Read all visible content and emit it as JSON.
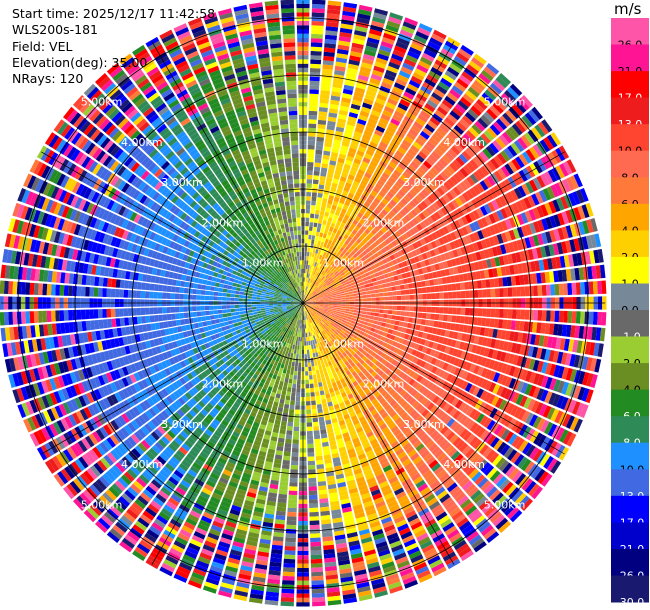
{
  "header": {
    "start_time": "Start time: 2025/12/17 11:42:58",
    "instrument": "WLS200s-181",
    "field": "Field: VEL",
    "elevation": "Elevation(deg): 35.00",
    "nrays": "NRays: 120"
  },
  "colorbar": {
    "unit": "m/s",
    "bins": [
      {
        "label": "26.0",
        "color": "#ff55a8"
      },
      {
        "label": "21.0",
        "color": "#ff1493"
      },
      {
        "label": "17.0",
        "color": "#ff0000"
      },
      {
        "label": "13.0",
        "color": "#ee1c1c"
      },
      {
        "label": "10.0",
        "color": "#ff4530"
      },
      {
        "label": "8.0",
        "color": "#ff6a50"
      },
      {
        "label": "6.0",
        "color": "#ff7a3a"
      },
      {
        "label": "4.0",
        "color": "#ffa500"
      },
      {
        "label": "2.0",
        "color": "#ffd000"
      },
      {
        "label": "1.0",
        "color": "#ffff00"
      },
      {
        "label": "0.0",
        "color": "#778899"
      },
      {
        "label": "-1.0",
        "color": "#696969"
      },
      {
        "label": "-2.0",
        "color": "#9acd32"
      },
      {
        "label": "-4.0",
        "color": "#6b8e23"
      },
      {
        "label": "-6.0",
        "color": "#228b22"
      },
      {
        "label": "-8.0",
        "color": "#2e8b57"
      },
      {
        "label": "-10.0",
        "color": "#1e90ff"
      },
      {
        "label": "-13.0",
        "color": "#4169e1"
      },
      {
        "label": "-17.0",
        "color": "#0000ff"
      },
      {
        "label": "-21.0",
        "color": "#0000cd"
      },
      {
        "label": "-26.0",
        "color": "#000080"
      },
      {
        "label": "-30.0",
        "color": "#191970"
      }
    ]
  },
  "chart_data": {
    "type": "heatmap",
    "projection": "polar PPI",
    "field": "VEL",
    "elevation_deg": 35.0,
    "nrays": 120,
    "max_range_km": 5.3,
    "range_rings_km": [
      1,
      2,
      3,
      4,
      5
    ],
    "ring_labels": [
      "1.00km",
      "2.00km",
      "3.00km",
      "4.00km",
      "5.00km"
    ],
    "velocity_pattern": {
      "description": "dipole: positive (toward east) warm colors, negative (toward west) cool colors; noisy beyond ~4.4 km",
      "max_abs_velocity": 13,
      "noise_start_km": 4.4
    }
  }
}
